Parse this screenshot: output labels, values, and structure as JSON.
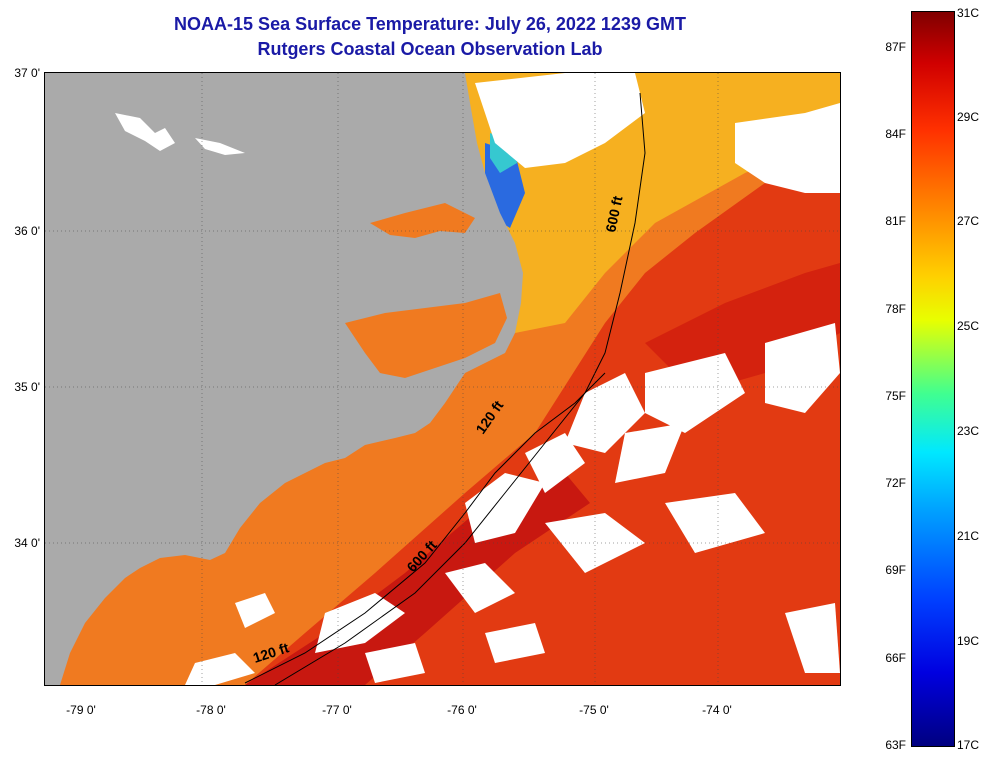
{
  "title": {
    "line1": "NOAA-15 Sea Surface Temperature:  July 26, 2022 1239 GMT",
    "line2": "Rutgers Coastal Ocean Observation Lab"
  },
  "map": {
    "lat_labels": [
      "37 0'",
      "36 0'",
      "35 0'",
      "34 0'"
    ],
    "lon_labels": [
      "-79 0'",
      "-78 0'",
      "-77 0'",
      "-76 0'",
      "-75 0'",
      "-74 0'"
    ],
    "contour_labels": [
      "600 ft",
      "120 ft",
      "600 ft",
      "120 ft"
    ]
  },
  "colorbar": {
    "fahrenheit_labels": [
      "87F",
      "84F",
      "81F",
      "78F",
      "75F",
      "72F",
      "69F",
      "66F",
      "63F"
    ],
    "celsius_labels": [
      "31C",
      "29C",
      "27C",
      "25C",
      "23C",
      "21C",
      "19C",
      "17C"
    ],
    "colors": {
      "min": "#000080",
      "mid": "#e8ff00",
      "max": "#800000"
    }
  },
  "colors": {
    "land": "#aaaaaa",
    "cloud": "#ffffff",
    "title": "#1a1aa6",
    "warm_water": "#e23a12",
    "shelf_water": "#f07a20"
  }
}
